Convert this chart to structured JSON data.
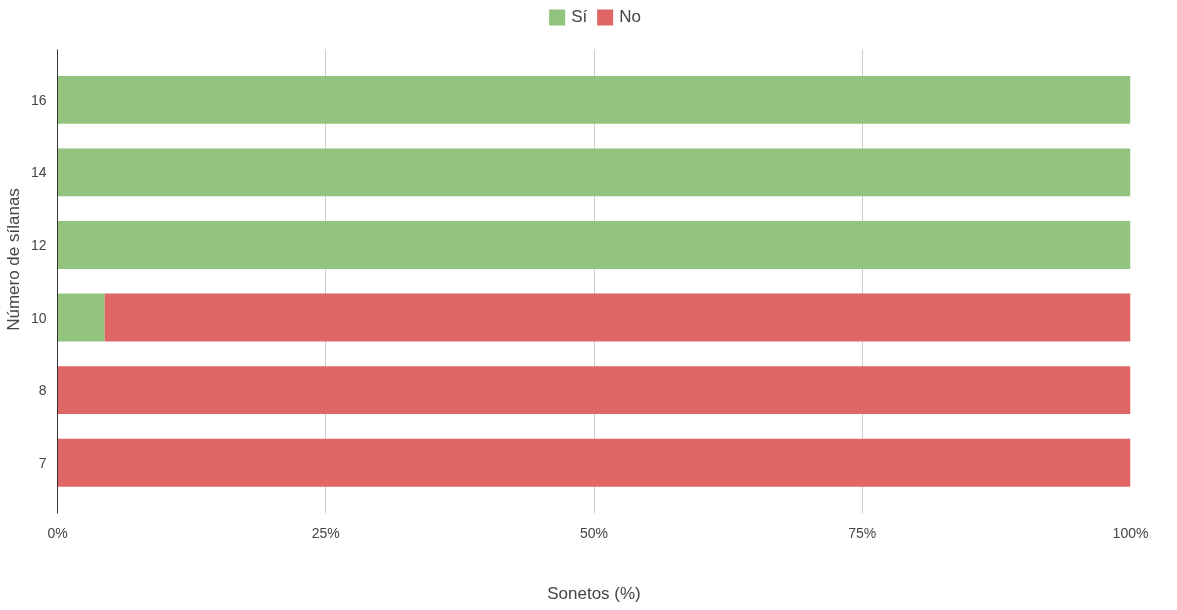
{
  "chart_data": {
    "type": "bar",
    "orientation": "horizontal",
    "stacked": true,
    "xlabel": "Sonetos (%)",
    "ylabel": "Número de sílanas",
    "categories": [
      "16",
      "14",
      "12",
      "10",
      "8",
      "7"
    ],
    "series": [
      {
        "name": "Sí",
        "color": "#93c47d",
        "values": [
          100,
          100,
          100,
          4.4,
          null,
          null
        ]
      },
      {
        "name": "No",
        "color": "#e06666",
        "values": [
          null,
          null,
          null,
          95.6,
          100,
          100
        ]
      }
    ],
    "xlim": [
      0,
      100
    ],
    "xticks": [
      {
        "value": 0,
        "label": "0%"
      },
      {
        "value": 25,
        "label": "25%"
      },
      {
        "value": 50,
        "label": "50%"
      },
      {
        "value": 75,
        "label": "75%"
      },
      {
        "value": 100,
        "label": "100%"
      }
    ],
    "grid": "x",
    "legend": "top"
  }
}
